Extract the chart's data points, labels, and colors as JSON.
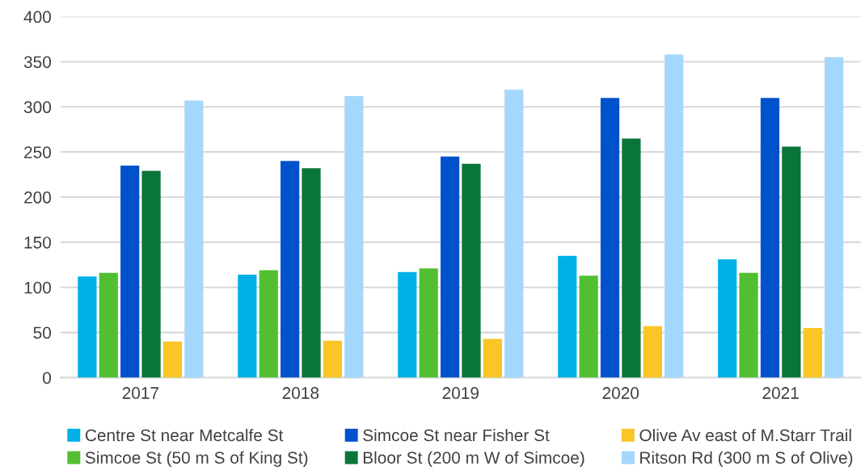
{
  "chart_data": {
    "type": "bar",
    "categories": [
      "2017",
      "2018",
      "2019",
      "2020",
      "2021"
    ],
    "series": [
      {
        "name": "Centre St near Metcalfe St",
        "color": "#00b0e6",
        "values": [
          112,
          114,
          117,
          135,
          131
        ]
      },
      {
        "name": "Simcoe St (50 m S of King St)",
        "color": "#52bf33",
        "values": [
          116,
          119,
          121,
          113,
          116
        ]
      },
      {
        "name": "Simcoe St near Fisher St",
        "color": "#0052cc",
        "values": [
          235,
          240,
          245,
          310,
          310
        ]
      },
      {
        "name": "Bloor St (200 m W of Simcoe)",
        "color": "#0a7539",
        "values": [
          229,
          232,
          237,
          265,
          256
        ]
      },
      {
        "name": "Olive Av east of M.Starr Trail",
        "color": "#f9c527",
        "values": [
          40,
          41,
          43,
          57,
          55
        ]
      },
      {
        "name": "Ritson Rd (300 m S of Olive)",
        "color": "#a3d8fc",
        "values": [
          307,
          312,
          319,
          358,
          355
        ]
      }
    ],
    "ylim": [
      0,
      400
    ],
    "yticks": [
      0,
      50,
      100,
      150,
      200,
      250,
      300,
      350,
      400
    ],
    "grid": "y",
    "legend": "bottom"
  }
}
